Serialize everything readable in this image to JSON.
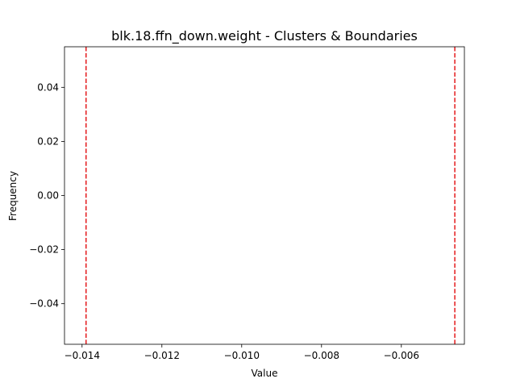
{
  "chart_data": {
    "type": "histogram",
    "title": "blk.18.ffn_down.weight - Clusters & Boundaries",
    "xlabel": "Value",
    "ylabel": "Frequency",
    "xlim": [
      -0.01444,
      -0.00442
    ],
    "ylim": [
      -0.055,
      0.055
    ],
    "xticks": [
      -0.014,
      -0.012,
      -0.01,
      -0.008,
      -0.006
    ],
    "xtick_labels": [
      "−0.014",
      "−0.012",
      "−0.010",
      "−0.008",
      "−0.006"
    ],
    "yticks": [
      0.04,
      0.02,
      0.0,
      -0.02,
      -0.04
    ],
    "ytick_labels": [
      "0.04",
      "0.02",
      "0.00",
      "−0.02",
      "−0.04"
    ],
    "boundaries": [
      -0.0139,
      -0.00466
    ],
    "boundary_color": "#e41a1c",
    "boundary_style": "dashed",
    "grid": false,
    "bars": []
  }
}
